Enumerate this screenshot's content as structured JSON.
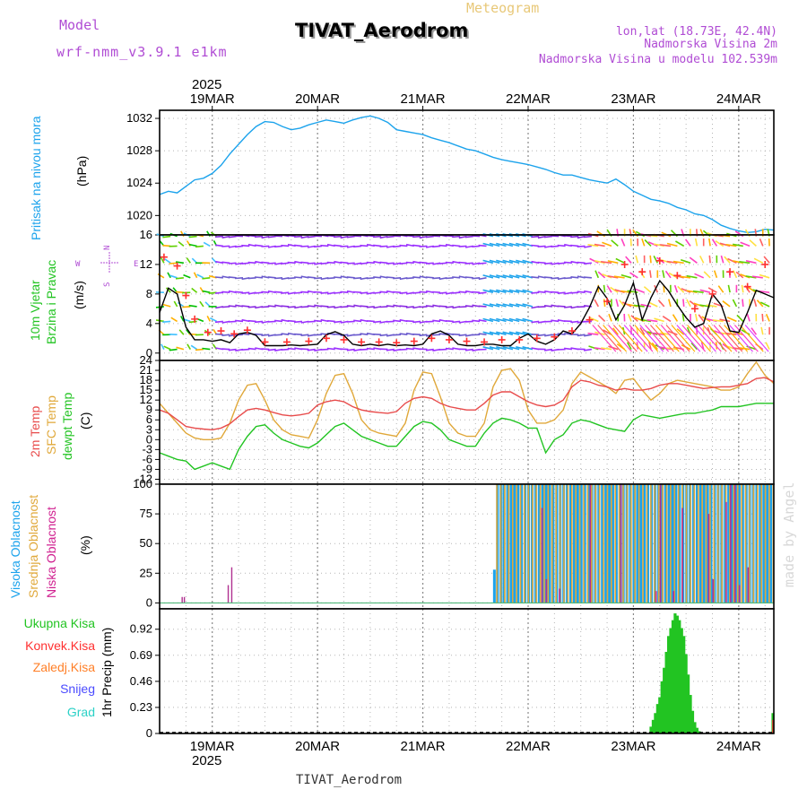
{
  "header": {
    "model_label": "Model",
    "model_name": "wrf-nmm_v3.9.1 e1km",
    "meteogram_label": "Meteogram",
    "station": "TIVAT_Aerodrom",
    "lonlat": "lon,lat (18.73E, 42.4N)",
    "altitude": "Nadmorska Visina 2m",
    "model_altitude": "Nadmorska Visina u modelu 102.539m",
    "footer_station": "TIVAT_Aerodrom",
    "credit": "made by Angel"
  },
  "time_axis": {
    "year": "2025",
    "days": [
      "19MAR",
      "20MAR",
      "21MAR",
      "22MAR",
      "23MAR",
      "24MAR"
    ],
    "hours_span": [
      -12,
      128
    ]
  },
  "panels": {
    "pressure": {
      "side_label": "Pritisak na nivou mora",
      "unit": "(hPa)"
    },
    "wind": {
      "side_label_1": "10m Vjetar",
      "side_label_2": "Brzina i Pravac",
      "unit": "(m/s)",
      "compass": {
        "n": "N",
        "s": "S",
        "e": "E",
        "w": "W"
      }
    },
    "temperature": {
      "label_2m": "2m Temp",
      "label_sfc": "SFC Temp",
      "label_dew": "dewpt Temp",
      "unit": "(C)"
    },
    "clouds": {
      "label_high": "Visoka Oblacnost",
      "label_mid": "Srednja Oblacnost",
      "label_low": "Niska Oblacnost",
      "unit": "(%)"
    },
    "precip": {
      "labels": [
        "Ukupna Kisa",
        "Konvek.Kisa",
        "Zaledj.Kisa",
        "Snijeg",
        "Grad"
      ],
      "unit": "1hr Precip (mm)"
    }
  },
  "colors": {
    "pressure": "#1ca3ec",
    "temp2m": "#e84b4b",
    "sfc": "#e0a83a",
    "dew": "#22c422",
    "wind": "#000000",
    "gust": "#ff3030",
    "high": "#1ca3ec",
    "mid": "#e0a83a",
    "low": "#b03090",
    "rain": "#22c422",
    "conv": "#ff3030",
    "frz": "#ff7f27",
    "snow": "#4b4bff",
    "grad": "#2bd1c7",
    "model": "#b04cd4",
    "meteogram": "#e8c878"
  },
  "chart_data": [
    {
      "type": "line",
      "name": "pressure",
      "ylim": [
        1017.6,
        1033
      ],
      "yticks": [
        1020,
        1024,
        1028,
        1032
      ],
      "x": [
        -12,
        -10,
        -8,
        -6,
        -4,
        -2,
        0,
        2,
        4,
        6,
        8,
        10,
        12,
        14,
        16,
        18,
        20,
        22,
        24,
        26,
        28,
        30,
        32,
        34,
        36,
        38,
        40,
        42,
        44,
        46,
        48,
        50,
        52,
        54,
        56,
        58,
        60,
        62,
        64,
        66,
        68,
        70,
        72,
        74,
        76,
        78,
        80,
        82,
        84,
        86,
        88,
        90,
        92,
        94,
        96,
        98,
        100,
        102,
        104,
        106,
        108,
        110,
        112,
        114,
        116,
        118,
        120,
        122,
        124,
        126,
        128
      ],
      "y": [
        1022.6,
        1023.0,
        1022.8,
        1023.6,
        1024.4,
        1024.6,
        1025.2,
        1026.2,
        1027.6,
        1028.8,
        1030.0,
        1031.0,
        1031.6,
        1031.5,
        1031.0,
        1030.6,
        1030.8,
        1031.2,
        1031.5,
        1031.8,
        1031.6,
        1031.4,
        1031.8,
        1032.1,
        1032.3,
        1032.0,
        1031.5,
        1030.6,
        1030.4,
        1030.2,
        1030.0,
        1029.6,
        1029.3,
        1029.0,
        1028.6,
        1028.2,
        1028.0,
        1027.6,
        1027.2,
        1026.9,
        1026.7,
        1026.5,
        1026.3,
        1026.0,
        1025.7,
        1025.3,
        1025.0,
        1025.0,
        1024.7,
        1024.4,
        1024.2,
        1024.0,
        1024.5,
        1023.8,
        1023.0,
        1022.5,
        1022.0,
        1021.8,
        1021.5,
        1021.0,
        1020.7,
        1020.2,
        1020.0,
        1019.5,
        1018.8,
        1018.4,
        1018.1,
        1017.9,
        1018.0,
        1018.3,
        1018.2
      ]
    },
    {
      "type": "line",
      "name": "wind",
      "ylim": [
        -1,
        16
      ],
      "yticks": [
        0,
        4,
        8,
        12,
        16
      ],
      "x": [
        -12,
        -10,
        -8,
        -6,
        -4,
        -2,
        0,
        2,
        4,
        6,
        8,
        10,
        12,
        14,
        16,
        18,
        20,
        22,
        24,
        26,
        28,
        30,
        32,
        34,
        36,
        38,
        40,
        42,
        44,
        46,
        48,
        50,
        52,
        54,
        56,
        58,
        60,
        62,
        64,
        66,
        68,
        70,
        72,
        74,
        76,
        78,
        80,
        82,
        84,
        86,
        88,
        90,
        92,
        94,
        96,
        98,
        100,
        102,
        104,
        106,
        108,
        110,
        112,
        114,
        116,
        118,
        120,
        122,
        124,
        126,
        128
      ],
      "y": [
        5.5,
        8.8,
        8.0,
        3.5,
        1.8,
        1.8,
        1.6,
        1.8,
        1.4,
        2.6,
        2.8,
        2.4,
        1.0,
        1.0,
        1.0,
        1.1,
        1.0,
        1.1,
        1.2,
        2.5,
        2.9,
        2.4,
        1.2,
        1.0,
        1.2,
        1.0,
        1.2,
        1.0,
        1.1,
        1.0,
        1.2,
        2.6,
        3.0,
        2.4,
        1.2,
        1.0,
        1.0,
        1.2,
        1.2,
        1.0,
        1.0,
        2.0,
        2.6,
        1.6,
        1.2,
        1.8,
        3.0,
        2.6,
        4.0,
        6.2,
        9.0,
        7.4,
        4.5,
        6.5,
        9.5,
        4.5,
        7.5,
        9.8,
        8.4,
        6.5,
        4.8,
        3.5,
        4.0,
        8.0,
        6.5,
        3.0,
        2.8,
        5.5,
        8.5,
        8.0,
        7.5
      ],
      "gusts_x": [
        -11,
        -8,
        -6,
        -4,
        -1,
        2,
        5,
        8,
        12,
        17,
        22,
        26,
        30,
        34,
        38,
        42,
        46,
        50,
        54,
        58,
        62,
        66,
        70,
        74,
        78,
        82,
        86,
        90,
        94,
        98,
        102,
        106,
        110,
        114,
        118,
        122,
        126
      ],
      "gusts_y": [
        13.0,
        11.8,
        7.8,
        4.6,
        2.8,
        3.0,
        2.6,
        3.1,
        1.5,
        1.5,
        1.6,
        2.0,
        1.8,
        1.5,
        1.5,
        1.4,
        1.6,
        2.0,
        1.8,
        1.6,
        1.5,
        1.8,
        1.8,
        2.0,
        2.2,
        3.0,
        4.5,
        7.0,
        12.0,
        11.0,
        12.5,
        10.5,
        6.0,
        8.0,
        11.0,
        9.0,
        12.0
      ]
    },
    {
      "type": "line",
      "name": "temperature",
      "ylim": [
        -13.5,
        24
      ],
      "yticks": [
        -12,
        -9,
        -6,
        -3,
        0,
        3,
        6,
        9,
        12,
        15,
        18,
        21,
        24
      ],
      "x": [
        -12,
        -10,
        -8,
        -6,
        -4,
        -2,
        0,
        2,
        4,
        6,
        8,
        10,
        12,
        14,
        16,
        18,
        20,
        22,
        24,
        26,
        28,
        30,
        32,
        34,
        36,
        38,
        40,
        42,
        44,
        46,
        48,
        50,
        52,
        54,
        56,
        58,
        60,
        62,
        64,
        66,
        68,
        70,
        72,
        74,
        76,
        78,
        80,
        82,
        84,
        86,
        88,
        90,
        92,
        94,
        96,
        98,
        100,
        102,
        104,
        106,
        108,
        110,
        112,
        114,
        116,
        118,
        120,
        122,
        124,
        126,
        128
      ],
      "t2m": [
        9,
        8,
        6,
        4,
        3.5,
        3.2,
        3.0,
        3.5,
        4.8,
        7,
        9,
        9.5,
        9,
        8.2,
        7.5,
        7.2,
        7.5,
        8,
        10.5,
        11.5,
        12,
        11.5,
        10,
        9,
        8.5,
        8.2,
        8.0,
        8.5,
        11,
        12.5,
        13.0,
        12.5,
        11,
        10,
        9.5,
        9,
        9.0,
        11,
        13.5,
        14.5,
        14.5,
        13,
        11.5,
        10.5,
        10,
        10.5,
        12,
        16,
        18,
        17.5,
        16.5,
        16.0,
        15,
        15.5,
        15.0,
        15,
        15.5,
        16.5,
        17,
        17,
        16.5,
        16,
        15.5,
        15.8,
        16.0,
        16.0,
        16.5,
        17,
        18.5,
        18.8,
        17.5
      ],
      "sfc": [
        11,
        8,
        5,
        2,
        0.5,
        0,
        0,
        0.5,
        5,
        12,
        16.5,
        17,
        12,
        6,
        3,
        1.5,
        1,
        0.5,
        6,
        14,
        19.5,
        20,
        14,
        6,
        3,
        2.0,
        1.5,
        1.0,
        5,
        15,
        20.5,
        20,
        13,
        5,
        2,
        1,
        1.0,
        5,
        16,
        21,
        21.5,
        18,
        9,
        5,
        5,
        6,
        9,
        17,
        20.5,
        19,
        17.5,
        16.0,
        14,
        18,
        18.5,
        15,
        12,
        14,
        17,
        18,
        17.5,
        17,
        16.5,
        16.0,
        15.0,
        15,
        16,
        20,
        23.5,
        19.5,
        17.0
      ],
      "dew": [
        -4,
        -5,
        -6,
        -6.5,
        -9,
        -8,
        -7,
        -8,
        -9,
        -3,
        1,
        4,
        4.5,
        2,
        0,
        -1,
        -2,
        -2.5,
        -1,
        1.5,
        4,
        5,
        3,
        1,
        0,
        -1,
        -2,
        -2,
        1,
        4,
        5.5,
        5,
        3,
        0,
        -1,
        -2,
        -2,
        2,
        5,
        6.5,
        6.0,
        5.0,
        3.5,
        3.5,
        -4,
        0,
        1.5,
        5,
        6,
        5.5,
        4.5,
        3.5,
        3.0,
        2.5,
        6,
        7.5,
        7.0,
        6.5,
        7,
        7.5,
        8,
        8.0,
        8.5,
        9,
        10,
        10,
        10,
        10.5,
        11,
        11,
        11
      ]
    },
    {
      "type": "bar",
      "name": "clouds",
      "ylim": [
        -5,
        100
      ],
      "yticks": [
        0,
        25,
        50,
        75,
        100
      ],
      "low_x": [
        -7,
        -6.5,
        3.5,
        4.3
      ],
      "low_y": [
        5,
        5,
        15,
        30
      ],
      "overcast_from": 64,
      "overcast_to": 128,
      "high_x": [
        64,
        64.7,
        65.5,
        66.2,
        67,
        67.8,
        68.6,
        69.4,
        70.2,
        71,
        71.8,
        72.6,
        73.4,
        74.2,
        75,
        75.8,
        76.6,
        77.4,
        78.2,
        79,
        79.8,
        80.6,
        81.4,
        82.2,
        83,
        83.8,
        84.6,
        85.4,
        86.2,
        87,
        87.8,
        88.6,
        89.4,
        90.2,
        91,
        91.8,
        92.6,
        93.4,
        94.2,
        95,
        95.8,
        96.6,
        97.4,
        98.2,
        99,
        99.8,
        100.6,
        101.4,
        102.2,
        103,
        103.8,
        104.6,
        105.4,
        106.2,
        107,
        107.8,
        108.6,
        109.4,
        110.2,
        111,
        111.8,
        112.6,
        113.4,
        114.2,
        115,
        115.8,
        116.6,
        117.4,
        118.2,
        119,
        119.8,
        120.6,
        121.4,
        122.2,
        123,
        123.8,
        124.6,
        125.4,
        126.2,
        127
      ],
      "high_y": [
        28,
        100,
        100,
        100,
        100,
        100,
        100,
        100,
        100,
        100,
        100,
        100,
        100,
        100,
        100,
        100,
        100,
        100,
        100,
        100,
        100,
        100,
        100,
        100,
        100,
        100,
        100,
        100,
        100,
        100,
        100,
        100,
        100,
        100,
        100,
        100,
        100,
        100,
        100,
        100,
        100,
        100,
        100,
        100,
        100,
        100,
        100,
        100,
        100,
        100,
        100,
        100,
        100,
        100,
        100,
        100,
        100,
        100,
        100,
        100,
        100,
        100,
        100,
        100,
        100,
        100,
        100,
        100,
        100,
        100,
        100,
        100,
        100,
        100,
        100,
        100,
        100,
        100,
        100,
        100
      ],
      "mid_x": [
        64.4,
        65.3,
        66.2,
        67.1,
        68,
        68.9,
        69.8,
        70.7,
        71.6,
        72.5,
        73.4,
        74.3,
        75.2,
        76.1,
        77,
        77.9,
        78.8,
        79.7,
        80.6,
        81.5,
        82.4,
        83.3,
        84.2,
        85.1,
        86,
        86.9,
        87.8,
        88.7,
        89.6,
        90.5,
        91.4,
        92.3,
        93.2,
        94.1,
        95,
        95.9,
        96.8,
        97.7,
        98.6,
        99.5,
        100.4,
        101.3,
        102.2,
        103.1,
        104,
        104.9,
        105.8,
        106.7,
        107.6,
        108.5,
        109.4,
        110.3,
        111.2,
        112.1,
        113,
        113.9,
        114.8,
        115.7,
        116.6,
        117.5,
        118.4,
        119.3,
        120.2,
        121.1,
        122,
        122.9,
        123.8,
        124.7,
        125.6,
        126.5,
        127.4
      ],
      "mid_y": [
        100,
        100,
        100,
        100,
        100,
        100,
        100,
        100,
        100,
        100,
        100,
        100,
        100,
        100,
        100,
        100,
        100,
        100,
        100,
        100,
        100,
        100,
        100,
        100,
        100,
        100,
        100,
        100,
        100,
        100,
        100,
        100,
        100,
        100,
        100,
        100,
        100,
        100,
        100,
        100,
        100,
        100,
        100,
        100,
        100,
        100,
        100,
        100,
        100,
        100,
        100,
        100,
        100,
        100,
        100,
        100,
        100,
        100,
        100,
        100,
        100,
        100,
        100,
        100,
        100,
        100,
        100,
        100,
        100,
        100,
        100
      ],
      "low2_x": [
        75,
        76,
        79,
        86,
        93,
        101,
        102,
        105,
        107,
        113,
        114,
        117,
        118,
        119,
        120,
        122
      ],
      "low2_y": [
        80,
        20,
        12,
        100,
        100,
        10,
        100,
        10,
        80,
        75,
        20,
        85,
        100,
        100,
        15,
        30
      ]
    },
    {
      "type": "bar",
      "name": "precip",
      "ylim": [
        0,
        1.1
      ],
      "yticks": [
        0,
        0.23,
        0.46,
        0.69,
        0.92
      ],
      "x": [
        100,
        100.5,
        101,
        101.5,
        102,
        102.5,
        103,
        103.5,
        104,
        104.5,
        105,
        105.5,
        106,
        106.5,
        107,
        107.5,
        108,
        108.5,
        109,
        109.5,
        110,
        110.5,
        111,
        111.5,
        127.8
      ],
      "y": [
        0.06,
        0.12,
        0.18,
        0.26,
        0.32,
        0.46,
        0.58,
        0.72,
        0.86,
        0.93,
        1.0,
        1.06,
        1.04,
        1.0,
        0.93,
        0.86,
        0.7,
        0.52,
        0.34,
        0.2,
        0.1,
        0.05,
        0.02,
        0.01,
        0.18
      ],
      "conv_x": [
        127.8
      ],
      "conv_y": [
        0.12
      ]
    }
  ]
}
